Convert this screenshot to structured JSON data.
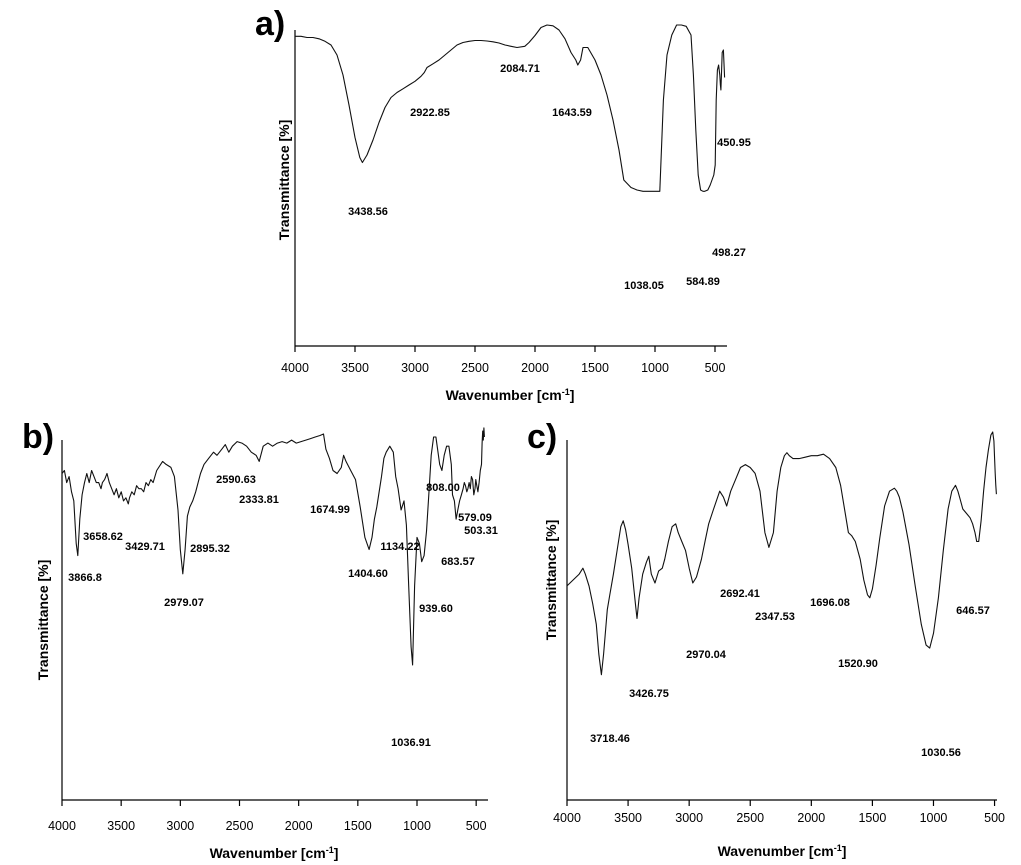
{
  "figure": {
    "xlabel_text": "Wavenumber [cm",
    "xlabel_sup": "-1",
    "xlabel_close": "]",
    "ylabel": "Transmittance [%]"
  },
  "chart_data": [
    {
      "type": "line",
      "panel": "a)",
      "xlabel": "Wavenumber [cm-1]",
      "ylabel": "Transmittance [%]",
      "xlim": [
        4000,
        400
      ],
      "x_reversed": true,
      "xticks": [
        4000,
        3500,
        3000,
        2500,
        2000,
        1500,
        1000,
        500
      ],
      "grid": false,
      "series": [
        {
          "x": [
            4000,
            3950,
            3900,
            3850,
            3800,
            3750,
            3700,
            3650,
            3600,
            3550,
            3500,
            3460,
            3438.56,
            3400,
            3350,
            3300,
            3250,
            3200,
            3150,
            3100,
            3050,
            3000,
            2950,
            2922.85,
            2900,
            2850,
            2800,
            2750,
            2700,
            2650,
            2600,
            2550,
            2500,
            2450,
            2400,
            2350,
            2300,
            2250,
            2200,
            2150,
            2084.71,
            2050,
            2000,
            1950,
            1900,
            1850,
            1800,
            1750,
            1700,
            1660,
            1643.59,
            1620,
            1600,
            1560,
            1500,
            1450,
            1400,
            1350,
            1300,
            1260,
            1200,
            1150,
            1100,
            1038.05,
            960,
            930,
            900,
            860,
            820,
            780,
            740,
            700,
            680,
            660,
            640,
            620,
            600,
            584.89,
            560,
            540,
            525,
            510,
            498.27,
            490,
            480,
            470,
            460,
            455,
            450.95,
            445,
            440,
            430,
            420
          ],
          "y": [
            95.5,
            95.5,
            95,
            95,
            94.5,
            93.5,
            92,
            88,
            80,
            68,
            55,
            47,
            45,
            48,
            54,
            61,
            67,
            71,
            73,
            74.5,
            76,
            77.5,
            79.5,
            81,
            83,
            84.5,
            86,
            88,
            90,
            92,
            93,
            93.5,
            93.8,
            93.8,
            93.6,
            93.3,
            92.8,
            92,
            91.5,
            91,
            91.5,
            93,
            95.8,
            99,
            100,
            99.7,
            98,
            94.5,
            89,
            86,
            84,
            86,
            91,
            91,
            86,
            80,
            72,
            62,
            50,
            38,
            35,
            34,
            33.5,
            33.5,
            33.5,
            70,
            88,
            96,
            100,
            100,
            99.5,
            96,
            80,
            58,
            40,
            34,
            33.5,
            33.5,
            34,
            36,
            38,
            40,
            44,
            70,
            82,
            84,
            80,
            76,
            74,
            82,
            89,
            90,
            79
          ]
        }
      ],
      "peak_labels": [
        "3438.56",
        "2922.85",
        "2084.71",
        "1643.59",
        "1038.05",
        "584.89",
        "498.27",
        "450.95"
      ]
    },
    {
      "type": "line",
      "panel": "b)",
      "xlabel": "Wavenumber [cm-1]",
      "ylabel": "Transmittance [%]",
      "xlim": [
        4000,
        400
      ],
      "x_reversed": true,
      "xticks": [
        4000,
        3500,
        3000,
        2500,
        2000,
        1500,
        1000,
        500
      ],
      "grid": false,
      "series": [
        {
          "x": [
            4000,
            3980,
            3960,
            3940,
            3920,
            3900,
            3880,
            3866.8,
            3850,
            3830,
            3810,
            3790,
            3770,
            3750,
            3730,
            3710,
            3690,
            3670,
            3658.62,
            3640,
            3620,
            3600,
            3580,
            3560,
            3540,
            3520,
            3500,
            3480,
            3460,
            3440,
            3429.71,
            3410,
            3390,
            3370,
            3350,
            3330,
            3310,
            3290,
            3270,
            3250,
            3230,
            3200,
            3150,
            3120,
            3080,
            3050,
            3020,
            3000,
            2979.07,
            2960,
            2940,
            2920,
            2895.32,
            2870,
            2850,
            2830,
            2800,
            2760,
            2720,
            2690,
            2650,
            2620,
            2590.63,
            2560,
            2520,
            2480,
            2440,
            2400,
            2360,
            2333.81,
            2300,
            2260,
            2220,
            2180,
            2140,
            2100,
            2060,
            2020,
            1980,
            1940,
            1900,
            1860,
            1820,
            1790,
            1770,
            1740,
            1710,
            1674.99,
            1640,
            1620,
            1600,
            1560,
            1520,
            1480,
            1440,
            1404.6,
            1380,
            1360,
            1340,
            1300,
            1280,
            1260,
            1230,
            1200,
            1180,
            1160,
            1134.22,
            1110,
            1090,
            1070,
            1050,
            1036.91,
            1020,
            1000,
            980,
            960,
            939.6,
            920,
            900,
            880,
            860,
            840,
            808,
            790,
            770,
            750,
            730,
            710,
            700,
            683.57,
            670,
            655,
            640,
            625,
            610,
            600,
            590,
            579.09,
            570,
            560,
            550,
            540,
            530,
            520,
            510,
            503.31,
            495,
            485,
            475,
            465,
            455,
            450,
            445,
            440,
            435,
            430
          ],
          "y": [
            87,
            88,
            84,
            86,
            81,
            78,
            64,
            60,
            72,
            80,
            84,
            87,
            84,
            88,
            86,
            84,
            84,
            82,
            84,
            85,
            87,
            84,
            82,
            80,
            82,
            79,
            81,
            78,
            79,
            77,
            79,
            81,
            80,
            83,
            82,
            82,
            81,
            84,
            83,
            85,
            84,
            88,
            91,
            90,
            89,
            86,
            75,
            62,
            54,
            62,
            73,
            76,
            78,
            81,
            84,
            87,
            90,
            92,
            94,
            93,
            95,
            96.5,
            94,
            96,
            97.5,
            97,
            96,
            94,
            93,
            91,
            96,
            97,
            96,
            97,
            97.5,
            97,
            98,
            97,
            97.5,
            98,
            98.5,
            99,
            99.5,
            100,
            95,
            92,
            88,
            87,
            89,
            93,
            91,
            88,
            85,
            76,
            66,
            62,
            66,
            72,
            76,
            86,
            92,
            94,
            96,
            94,
            86,
            82,
            75,
            78,
            70,
            50,
            30,
            24,
            50,
            66,
            64,
            58,
            60,
            68,
            80,
            93,
            99,
            99,
            90,
            88,
            93,
            96,
            96,
            90,
            80,
            78,
            72,
            75,
            78,
            80,
            82,
            84,
            83,
            81,
            82,
            84,
            82,
            86,
            85,
            80,
            82,
            85,
            83,
            81,
            84,
            88,
            90,
            97,
            101,
            98,
            102,
            99
          ]
        }
      ],
      "peak_labels": [
        "3866.8",
        "3658.62",
        "3429.71",
        "2979.07",
        "2895.32",
        "2590.63",
        "2333.81",
        "1674.99",
        "1404.60",
        "1134.22",
        "1036.91",
        "939.60",
        "808.00",
        "683.57",
        "579.09",
        "503.31"
      ]
    },
    {
      "type": "line",
      "panel": "c)",
      "xlabel": "Wavenumber [cm-1]",
      "ylabel": "Transmittance [%]",
      "xlim": [
        4000,
        480
      ],
      "x_reversed": true,
      "xticks": [
        4000,
        3500,
        3000,
        2500,
        2000,
        1500,
        1000,
        500
      ],
      "grid": false,
      "series": [
        {
          "x": [
            4000,
            3950,
            3900,
            3870,
            3850,
            3820,
            3790,
            3760,
            3740,
            3718.46,
            3700,
            3670,
            3650,
            3620,
            3590,
            3560,
            3540,
            3520,
            3500,
            3470,
            3440,
            3426.75,
            3410,
            3380,
            3350,
            3330,
            3310,
            3280,
            3250,
            3220,
            3200,
            3170,
            3140,
            3110,
            3090,
            3060,
            3030,
            3000,
            2970.04,
            2940,
            2900,
            2870,
            2840,
            2800,
            2750,
            2720,
            2692.41,
            2660,
            2620,
            2580,
            2540,
            2500,
            2460,
            2420,
            2380,
            2347.53,
            2310,
            2280,
            2250,
            2220,
            2200,
            2180,
            2150,
            2100,
            2050,
            2000,
            1950,
            1900,
            1850,
            1800,
            1760,
            1720,
            1696.08,
            1670,
            1640,
            1600,
            1570,
            1540,
            1520.9,
            1500,
            1470,
            1440,
            1400,
            1360,
            1320,
            1300,
            1280,
            1250,
            1200,
            1150,
            1100,
            1060,
            1030.56,
            1000,
            960,
            920,
            880,
            850,
            820,
            800,
            780,
            760,
            740,
            720,
            700,
            680,
            660,
            646.57,
            630,
            610,
            590,
            570,
            550,
            530,
            515,
            505,
            500,
            495,
            490,
            485
          ],
          "y": [
            48,
            50,
            52,
            54,
            52,
            48,
            42,
            35,
            25,
            18,
            25,
            40,
            45,
            52,
            60,
            68,
            70,
            67,
            62,
            54,
            42,
            37,
            44,
            52,
            56,
            58,
            52,
            49,
            53,
            54,
            57,
            63,
            68,
            69,
            66,
            63,
            60,
            54,
            49,
            51,
            57,
            63,
            69,
            74,
            80,
            78,
            75,
            80,
            84,
            88,
            89,
            88,
            86,
            80,
            66,
            61,
            66,
            80,
            88,
            92,
            93,
            92,
            91,
            91,
            91.5,
            92,
            92,
            92.5,
            91,
            88,
            82,
            72,
            66,
            65,
            63,
            57,
            50,
            45,
            44,
            47,
            55,
            64,
            75,
            80,
            81,
            80,
            78,
            73,
            62,
            48,
            35,
            28,
            27,
            32,
            44,
            60,
            74,
            80,
            82,
            80,
            77,
            74,
            73,
            72,
            71,
            69,
            66,
            63,
            63,
            70,
            80,
            88,
            94,
            99,
            100,
            97,
            91,
            86,
            82,
            79
          ]
        }
      ],
      "peak_labels": [
        "3718.46",
        "3426.75",
        "2970.04",
        "2692.41",
        "2347.53",
        "1696.08",
        "1520.90",
        "1030.56",
        "646.57"
      ]
    }
  ]
}
